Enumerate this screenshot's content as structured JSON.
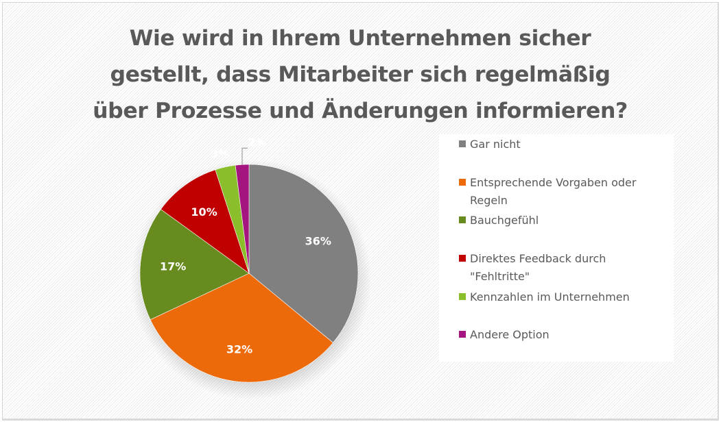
{
  "chart_data": {
    "type": "pie",
    "title": "Wie wird in Ihrem Unternehmen sicher gestellt, dass Mitarbeiter sich regelmäßig über Prozesse und Änderungen informieren?",
    "title_lines": [
      "Wie wird in Ihrem Unternehmen sicher",
      "gestellt, dass Mitarbeiter sich regelmäßig",
      "über Prozesse und Änderungen informieren?"
    ],
    "categories": [
      "Gar nicht",
      "Entsprechende Vorgaben oder Regeln",
      "Bauchgefühl",
      "Direktes Feedback durch \"Fehltritte\"",
      "Kennzahlen im Unternehmen",
      "Andere Option"
    ],
    "values": [
      36,
      32,
      17,
      10,
      3,
      2
    ],
    "data_labels": [
      "36%",
      "32%",
      "17%",
      "10%",
      "3%",
      "2%"
    ],
    "colors": [
      "#808080",
      "#ed6a0b",
      "#678b1f",
      "#c00000",
      "#8abf2b",
      "#a5157f"
    ],
    "start_angle_deg": 0,
    "direction": "clockwise",
    "legend_position": "right"
  }
}
